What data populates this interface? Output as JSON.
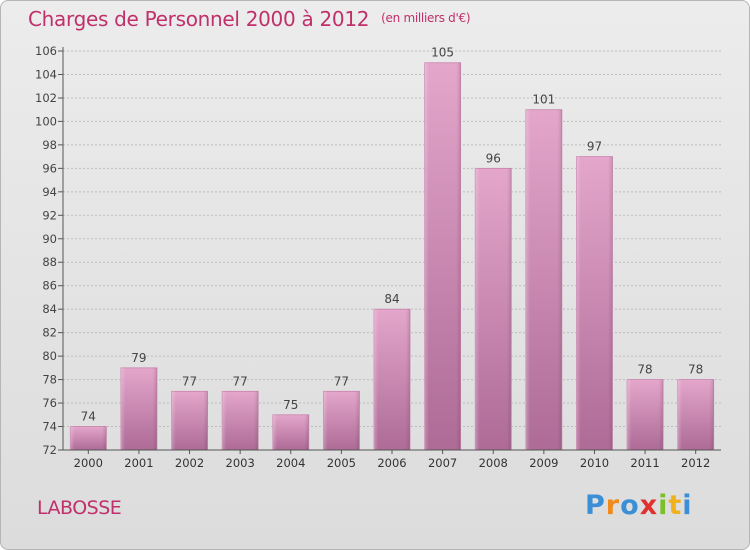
{
  "header": {
    "title": "Charges de Personnel 2000 à 2012",
    "subtitle": "(en milliers d'€)"
  },
  "footer": {
    "commune": "LABOSSE",
    "brand": "Proxiti"
  },
  "colors": {
    "title": "#c0306a",
    "bar_top": "#e2a3c9",
    "bar_bottom": "#b06d98",
    "grid": "#bcbcbc",
    "text": "#444444"
  },
  "chart_data": {
    "type": "bar",
    "title": "Charges de Personnel 2000 à 2012",
    "subtitle": "(en milliers d'€)",
    "categories": [
      "2000",
      "2001",
      "2002",
      "2003",
      "2004",
      "2005",
      "2006",
      "2007",
      "2008",
      "2009",
      "2010",
      "2011",
      "2012"
    ],
    "values": [
      74,
      79,
      77,
      77,
      75,
      77,
      84,
      105,
      96,
      101,
      97,
      78,
      78
    ],
    "ylim": [
      72,
      106
    ],
    "yticks": [
      72,
      74,
      76,
      78,
      80,
      82,
      84,
      86,
      88,
      90,
      92,
      94,
      96,
      98,
      100,
      102,
      104,
      106
    ],
    "grid": true,
    "xlabel": "",
    "ylabel": ""
  }
}
